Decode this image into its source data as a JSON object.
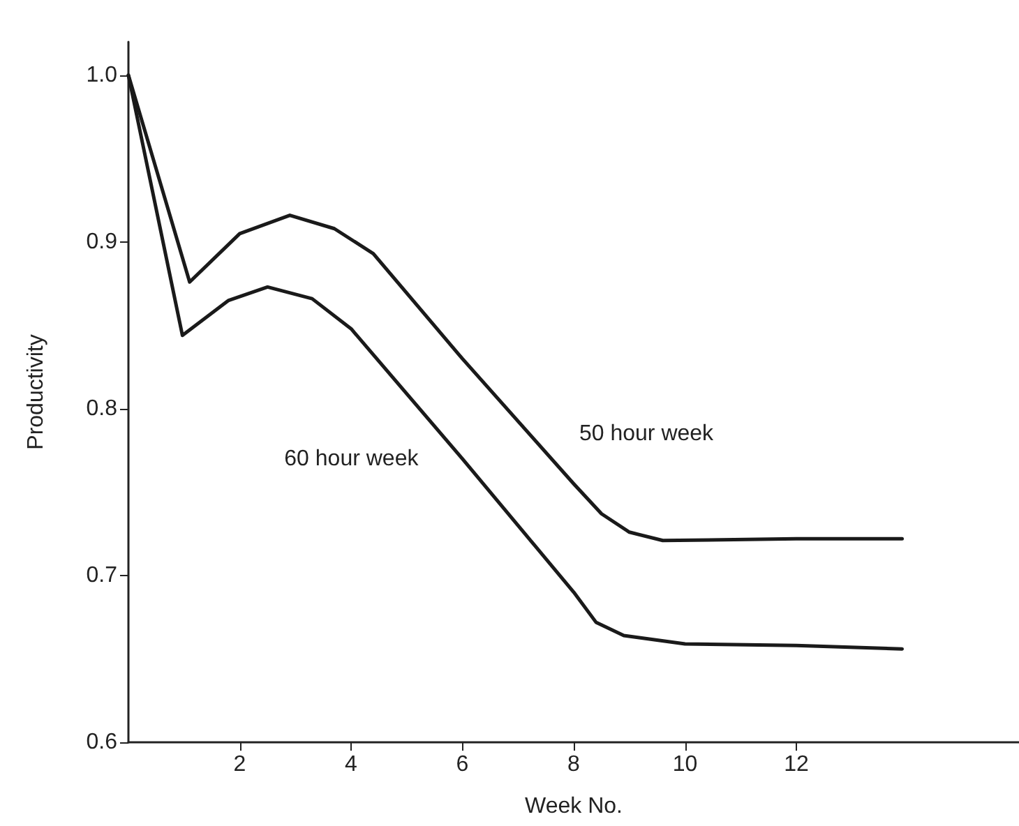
{
  "chart_data": {
    "type": "line",
    "xlabel": "Week No.",
    "ylabel": "Productivity",
    "xlim": [
      0,
      16
    ],
    "xticks": [
      2,
      4,
      6,
      8,
      10,
      12
    ],
    "ylim": [
      0.6,
      1.02
    ],
    "yticks": [
      0.6,
      0.7,
      0.8,
      0.9,
      {
        "value": 1,
        "label": "1.0"
      }
    ],
    "grid": false,
    "legend": false,
    "marker": "none",
    "line_style": "solid",
    "series": [
      {
        "name": "50 hour week",
        "color": "#1a1a1a",
        "x": [
          0,
          1.1,
          2,
          2.9,
          3.7,
          4.4,
          6,
          8,
          8.5,
          9,
          9.6,
          12,
          13.9
        ],
        "values": [
          1.0,
          0.876,
          0.905,
          0.916,
          0.908,
          0.893,
          0.83,
          0.755,
          0.737,
          0.726,
          0.721,
          0.722,
          0.722
        ]
      },
      {
        "name": "60 hour week",
        "color": "#1a1a1a",
        "x": [
          0,
          0.97,
          1.8,
          2.5,
          3.3,
          4,
          6,
          8,
          8.4,
          8.9,
          10,
          12,
          13.9
        ],
        "values": [
          1.0,
          0.844,
          0.865,
          0.873,
          0.866,
          0.848,
          0.77,
          0.69,
          0.672,
          0.664,
          0.659,
          0.658,
          0.656
        ]
      }
    ]
  }
}
